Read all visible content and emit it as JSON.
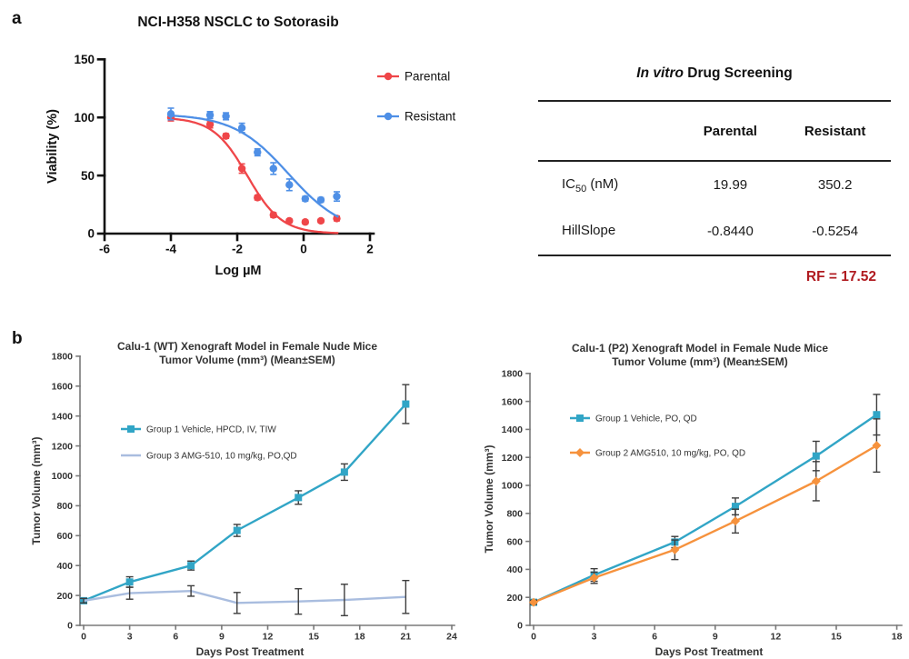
{
  "panels": {
    "a_label": "a",
    "b_label": "b"
  },
  "table": {
    "title_italic": "In vitro",
    "title_rest": " Drug Screening",
    "headers": [
      "",
      "Parental",
      "Resistant"
    ],
    "rows": [
      {
        "label_pre": "IC",
        "label_sub": "50",
        "label_post": " (nM)",
        "parental": "19.99",
        "resistant": "350.2"
      },
      {
        "label_pre": "HillSlope",
        "label_sub": "",
        "label_post": "",
        "parental": "-0.8440",
        "resistant": "-0.5254"
      }
    ],
    "rf_text": "RF = 17.52",
    "rf_color": "#B01B20"
  },
  "chart_data": [
    {
      "id": "dose-response",
      "type": "scatter",
      "title": "NCI-H358 NSCLC to Sotorasib",
      "xlabel": "Log µM",
      "ylabel": "Viability (%)",
      "xlim": [
        -6,
        2
      ],
      "ylim": [
        0,
        150
      ],
      "xticks": [
        -6,
        -4,
        -2,
        0,
        2
      ],
      "yticks": [
        0,
        50,
        100,
        150
      ],
      "legend_position": "right-top",
      "grid": false,
      "series": [
        {
          "name": "Parental",
          "color": "#EF4649",
          "marker": "circle",
          "x": [
            -4,
            -2.82,
            -2.34,
            -1.86,
            -1.39,
            -0.91,
            -0.43,
            0.05,
            0.52,
            1
          ],
          "y": [
            100,
            94,
            84,
            56,
            31,
            16,
            11,
            10,
            11,
            13
          ],
          "err": [
            3,
            3,
            2,
            4,
            2,
            2,
            1.5,
            1.5,
            1.5,
            2
          ],
          "fit": {
            "logIC50": -1.699,
            "hill": -0.844,
            "top": 100,
            "bottom": 0
          }
        },
        {
          "name": "Resistant",
          "color": "#4E8FE6",
          "marker": "circle",
          "x": [
            -4,
            -2.82,
            -2.34,
            -1.86,
            -1.39,
            -0.91,
            -0.43,
            0.05,
            0.52,
            1
          ],
          "y": [
            103,
            102,
            101,
            91,
            70,
            56,
            42,
            30,
            29,
            32
          ],
          "err": [
            5,
            3,
            3,
            4,
            3,
            5,
            5,
            2,
            2,
            4
          ],
          "fit": {
            "logIC50": -0.4557,
            "hill": -0.5254,
            "top": 103,
            "bottom": 0
          }
        }
      ]
    },
    {
      "id": "xenograft-wt",
      "type": "line",
      "title_lines": [
        "Calu-1 (WT) Xenograft Model in Female Nude Mice",
        "Tumor Volume (mm³) (Mean±SEM)"
      ],
      "xlabel": "Days Post Treatment",
      "ylabel": "Tumor Volume (mm³)",
      "xlim": [
        0,
        24
      ],
      "ylim": [
        0,
        1800
      ],
      "xticks": [
        0,
        3,
        6,
        9,
        12,
        15,
        18,
        21,
        24
      ],
      "yticks": [
        0,
        200,
        400,
        600,
        800,
        1000,
        1200,
        1400,
        1600,
        1800
      ],
      "legend_position": "inside-left-top",
      "grid": false,
      "series": [
        {
          "name": "Group 1 Vehicle, HPCD, IV, TIW",
          "color": "#31A5C6",
          "marker": "square",
          "x": [
            0,
            3,
            7,
            10,
            14,
            17,
            21
          ],
          "y": [
            165,
            290,
            400,
            635,
            855,
            1025,
            1480
          ],
          "err": [
            15,
            35,
            30,
            40,
            45,
            55,
            130
          ]
        },
        {
          "name": "Group 3 AMG-510, 10 mg/kg, PO,QD",
          "color": "#A9BDDF",
          "marker": "none",
          "x": [
            0,
            3,
            7,
            10,
            14,
            17,
            21
          ],
          "y": [
            165,
            215,
            230,
            150,
            160,
            170,
            190
          ],
          "err": [
            15,
            40,
            35,
            70,
            85,
            105,
            110
          ]
        }
      ]
    },
    {
      "id": "xenograft-p2",
      "type": "line",
      "title_lines": [
        "Calu-1 (P2) Xenograft Model in Female Nude Mice",
        "Tumor Volume (mm³) (Mean±SEM)"
      ],
      "xlabel": "Days Post Treatment",
      "ylabel": "Tumor Volume (mm³)",
      "xlim": [
        0,
        18
      ],
      "ylim": [
        0,
        1800
      ],
      "xticks": [
        0,
        3,
        6,
        9,
        12,
        15,
        18
      ],
      "yticks": [
        0,
        200,
        400,
        600,
        800,
        1000,
        1200,
        1400,
        1600,
        1800
      ],
      "legend_position": "inside-left-top",
      "grid": false,
      "series": [
        {
          "name": "Group 1 Vehicle, PO, QD",
          "color": "#31A5C6",
          "marker": "square",
          "x": [
            0,
            3,
            7,
            10,
            14,
            17
          ],
          "y": [
            165,
            360,
            595,
            850,
            1210,
            1505
          ],
          "err": [
            15,
            45,
            40,
            60,
            105,
            145
          ]
        },
        {
          "name": "Group 2 AMG510, 10 mg/kg, PO, QD",
          "color": "#F6923D",
          "marker": "diamond",
          "x": [
            0,
            3,
            7,
            10,
            14,
            17
          ],
          "y": [
            165,
            340,
            540,
            745,
            1030,
            1285
          ],
          "err": [
            15,
            40,
            70,
            85,
            140,
            190
          ]
        }
      ]
    }
  ]
}
